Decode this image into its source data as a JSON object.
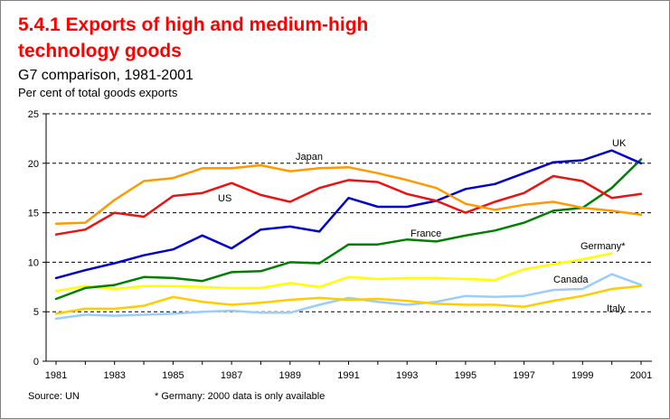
{
  "header": {
    "title_line1": "5.4.1 Exports of high and medium-high",
    "title_line2": "technology goods",
    "subtitle": "G7 comparison, 1981-2001",
    "units": "Per cent of total goods exports"
  },
  "footer": {
    "source": "Source: UN",
    "note": "* Germany: 2000 data is only available"
  },
  "chart_data": {
    "type": "line",
    "xlabel": "",
    "ylabel": "",
    "xlim": [
      1981,
      2001
    ],
    "ylim": [
      0,
      25
    ],
    "yticks": [
      0,
      5,
      10,
      15,
      20,
      25
    ],
    "xticks": [
      1981,
      1983,
      1985,
      1987,
      1989,
      1991,
      1993,
      1995,
      1997,
      1999,
      2001
    ],
    "grid": "horizontal-dashed",
    "series": [
      {
        "name": "Japan",
        "color": "#ff9900",
        "x": [
          1981,
          1982,
          1983,
          1984,
          1985,
          1986,
          1987,
          1988,
          1989,
          1990,
          1991,
          1992,
          1993,
          1994,
          1995,
          1996,
          1997,
          1998,
          1999,
          2000,
          2001
        ],
        "values": [
          13.9,
          14.0,
          16.3,
          18.2,
          18.5,
          19.5,
          19.5,
          19.8,
          19.2,
          19.5,
          19.6,
          19.0,
          18.3,
          17.5,
          15.9,
          15.3,
          15.8,
          16.1,
          15.5,
          15.2,
          14.8
        ]
      },
      {
        "name": "US",
        "color": "#ee1111",
        "x": [
          1981,
          1982,
          1983,
          1984,
          1985,
          1986,
          1987,
          1988,
          1989,
          1990,
          1991,
          1992,
          1993,
          1994,
          1995,
          1996,
          1997,
          1998,
          1999,
          2000,
          2001
        ],
        "values": [
          12.8,
          13.3,
          15.0,
          14.6,
          16.7,
          17.0,
          18.0,
          16.8,
          16.1,
          17.5,
          18.3,
          18.1,
          16.9,
          16.2,
          15.0,
          16.1,
          17.0,
          18.7,
          18.2,
          16.5,
          16.9
        ]
      },
      {
        "name": "UK",
        "color": "#0000cc",
        "x": [
          1981,
          1982,
          1983,
          1984,
          1985,
          1986,
          1987,
          1988,
          1989,
          1990,
          1991,
          1992,
          1993,
          1994,
          1995,
          1996,
          1997,
          1998,
          1999,
          2000,
          2001
        ],
        "values": [
          8.4,
          9.2,
          9.9,
          10.7,
          11.3,
          12.7,
          11.4,
          13.3,
          13.6,
          13.1,
          16.5,
          15.6,
          15.6,
          16.2,
          17.4,
          17.9,
          19.0,
          20.1,
          20.3,
          21.3,
          20.0
        ]
      },
      {
        "name": "France",
        "color": "#008000",
        "x": [
          1981,
          1982,
          1983,
          1984,
          1985,
          1986,
          1987,
          1988,
          1989,
          1990,
          1991,
          1992,
          1993,
          1994,
          1995,
          1996,
          1997,
          1998,
          1999,
          2000,
          2001
        ],
        "values": [
          6.3,
          7.4,
          7.7,
          8.5,
          8.4,
          8.1,
          9.0,
          9.1,
          10.0,
          9.9,
          11.8,
          11.8,
          12.3,
          12.1,
          12.7,
          13.2,
          14.0,
          15.2,
          15.5,
          17.5,
          20.4
        ]
      },
      {
        "name": "Germany*",
        "color": "#ffff00",
        "x": [
          1981,
          1982,
          1983,
          1984,
          1985,
          1986,
          1987,
          1988,
          1989,
          1990,
          1991,
          1992,
          1993,
          1994,
          1995,
          1996,
          1997,
          1998,
          1999,
          2000
        ],
        "values": [
          7.1,
          7.6,
          7.3,
          7.6,
          7.6,
          7.5,
          7.4,
          7.4,
          7.9,
          7.5,
          8.5,
          8.3,
          8.4,
          8.4,
          8.3,
          8.2,
          9.3,
          9.8,
          10.3,
          10.9
        ]
      },
      {
        "name": "Italy",
        "color": "#ffcc00",
        "x": [
          1981,
          1982,
          1983,
          1984,
          1985,
          1986,
          1987,
          1988,
          1989,
          1990,
          1991,
          1992,
          1993,
          1994,
          1995,
          1996,
          1997,
          1998,
          1999,
          2000,
          2001
        ],
        "values": [
          4.8,
          5.3,
          5.3,
          5.6,
          6.5,
          6.0,
          5.7,
          5.9,
          6.2,
          6.4,
          6.2,
          6.3,
          6.1,
          5.8,
          5.7,
          5.7,
          5.5,
          6.1,
          6.6,
          7.3,
          7.6
        ]
      },
      {
        "name": "Canada",
        "color": "#99ccff",
        "x": [
          1981,
          1982,
          1983,
          1984,
          1985,
          1986,
          1987,
          1988,
          1989,
          1990,
          1991,
          1992,
          1993,
          1994,
          1995,
          1996,
          1997,
          1998,
          1999,
          2000,
          2001
        ],
        "values": [
          4.3,
          4.7,
          4.6,
          4.7,
          4.8,
          5.0,
          5.1,
          4.9,
          4.9,
          5.7,
          6.4,
          6.0,
          5.7,
          6.0,
          6.6,
          6.5,
          6.6,
          7.2,
          7.3,
          8.8,
          7.7
        ]
      }
    ]
  }
}
